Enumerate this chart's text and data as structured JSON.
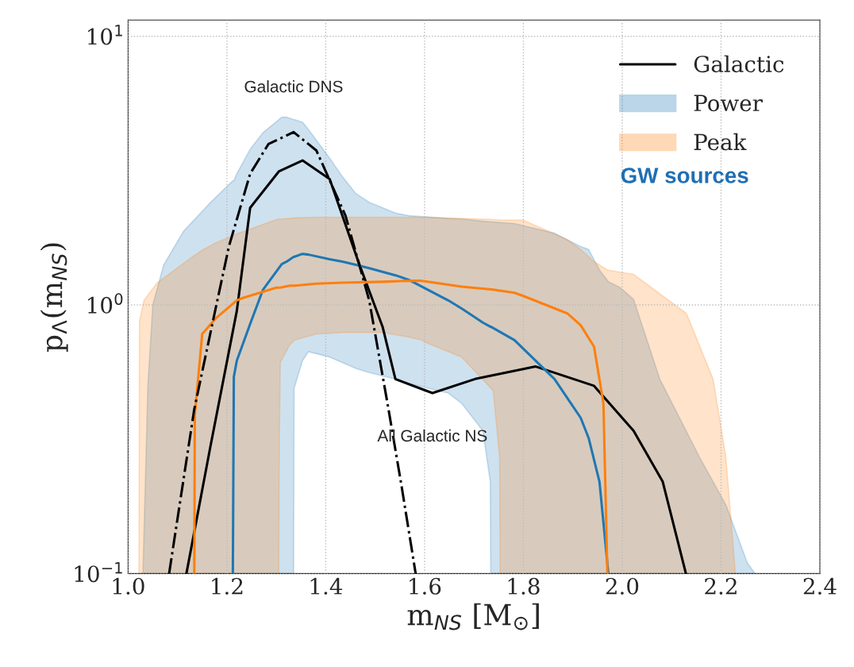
{
  "chart_data": {
    "type": "line",
    "xlabel": "m$_{NS}$ [M$_{⊙}$]",
    "ylabel": "p$_{Λ}$(m$_{NS}$)",
    "xlim": [
      1.0,
      2.4
    ],
    "xticks": [
      {
        "value": 1,
        "label": "1.0"
      },
      1.2,
      1.4,
      1.6,
      1.8,
      {
        "value": 2,
        "label": "2.0"
      },
      2.2,
      2.4
    ],
    "ylim": [
      0.1,
      11.5
    ],
    "yticks": [
      {
        "value": 0.1,
        "label": "10$^{−1}$"
      },
      {
        "value": 1,
        "label": "10$^{0}$"
      },
      {
        "value": 10,
        "label": "10$^{1}$"
      }
    ],
    "log": "y",
    "grid": true,
    "legend": "top right",
    "series": [
      {
        "name": "Galactic",
        "color": "#000000",
        "x": [
          1.118,
          1.167,
          1.22,
          1.247,
          1.305,
          1.353,
          1.408,
          1.466,
          1.515,
          1.541,
          1.616,
          1.702,
          1.825,
          1.943,
          2.023,
          2.082,
          2.129
        ],
        "values": [
          0.1,
          0.3,
          0.95,
          2.3,
          3.14,
          3.45,
          2.94,
          1.45,
          0.83,
          0.53,
          0.47,
          0.53,
          0.59,
          0.5,
          0.34,
          0.22,
          0.1
        ]
      },
      {
        "name": "Power",
        "color": "#1f77b4",
        "x": [
          1.03,
          1.04,
          1.05,
          1.072,
          1.112,
          1.167,
          1.212,
          1.214,
          1.22,
          1.247,
          1.273,
          1.311,
          1.321,
          1.335,
          1.336,
          1.353,
          1.365,
          1.408,
          1.434,
          1.461,
          1.488,
          1.541,
          1.568,
          1.648,
          1.675,
          1.718,
          1.733,
          1.734,
          1.782,
          1.863,
          1.916,
          1.932,
          1.954,
          1.972,
          1.996,
          2.023,
          2.076,
          2.157,
          2.21,
          2.253,
          2.269
        ],
        "values": [
          null,
          null,
          null,
          null,
          null,
          null,
          0.1,
          0.54,
          0.62,
          0.85,
          1.14,
          1.42,
          1.45,
          1.51,
          1.51,
          1.55,
          1.54,
          1.48,
          1.45,
          1.41,
          1.37,
          1.29,
          1.24,
          1.04,
          0.97,
          0.86,
          0.83,
          0.83,
          0.74,
          0.53,
          0.38,
          0.32,
          0.22,
          0.1,
          null,
          null,
          null,
          null,
          null,
          null,
          null
        ],
        "lower": [
          0.1,
          0.1,
          0.1,
          0.1,
          0.1,
          0.1,
          0.1,
          0.1,
          0.1,
          0.1,
          0.1,
          0.1,
          0.1,
          0.1,
          0.49,
          0.62,
          0.67,
          0.64,
          0.61,
          0.58,
          0.56,
          0.53,
          0.51,
          0.47,
          0.43,
          0.34,
          0.22,
          0.1,
          0.1,
          0.1,
          0.1,
          0.1,
          0.1,
          0.1,
          0.1,
          0.1,
          0.1,
          0.1,
          0.1,
          0.1,
          0.1
        ],
        "upper": [
          0.1,
          0.5,
          1.0,
          1.41,
          1.88,
          2.41,
          2.9,
          2.9,
          3.08,
          3.8,
          4.38,
          5.0,
          5.0,
          4.9,
          4.9,
          4.79,
          4.5,
          3.52,
          3.0,
          2.6,
          2.41,
          2.2,
          2.15,
          2.1,
          2.09,
          2.05,
          2.04,
          2.04,
          2.01,
          1.85,
          1.65,
          1.61,
          1.35,
          1.22,
          1.16,
          1.05,
          0.53,
          0.27,
          0.18,
          0.11,
          0.1
        ]
      },
      {
        "name": "Peak",
        "color": "#ff7f0e",
        "x": [
          1.022,
          1.023,
          1.032,
          1.059,
          1.134,
          1.135,
          1.15,
          1.177,
          1.22,
          1.231,
          1.3,
          1.305,
          1.306,
          1.308,
          1.327,
          1.337,
          1.381,
          1.434,
          1.515,
          1.568,
          1.594,
          1.606,
          1.675,
          1.739,
          1.752,
          1.753,
          1.782,
          1.8,
          1.889,
          1.916,
          1.943,
          1.962,
          1.97,
          2.023,
          2.13,
          2.184,
          2.21,
          2.229
        ],
        "values": [
          null,
          null,
          null,
          null,
          0.1,
          0.39,
          0.78,
          0.89,
          1.04,
          1.06,
          1.16,
          1.16,
          1.16,
          1.16,
          1.18,
          1.18,
          1.2,
          1.21,
          1.22,
          1.23,
          1.23,
          1.22,
          1.17,
          1.14,
          1.13,
          1.13,
          1.11,
          1.08,
          0.93,
          0.84,
          0.7,
          0.43,
          0.1,
          null,
          null,
          null,
          null,
          null
        ],
        "lower": [
          0.1,
          0.1,
          0.1,
          0.1,
          0.1,
          0.1,
          0.1,
          0.1,
          0.1,
          0.1,
          0.1,
          0.1,
          0.3,
          0.61,
          0.71,
          0.74,
          0.78,
          0.79,
          0.79,
          0.76,
          0.74,
          0.72,
          0.64,
          0.48,
          0.27,
          0.1,
          0.1,
          0.1,
          0.1,
          0.1,
          0.1,
          0.1,
          0.1,
          0.1,
          0.1,
          0.1,
          0.1,
          0.1
        ],
        "upper": [
          0.1,
          0.87,
          1.04,
          1.21,
          1.53,
          1.53,
          1.6,
          1.7,
          1.84,
          1.87,
          2.08,
          2.09,
          2.09,
          2.09,
          2.1,
          2.11,
          2.12,
          2.12,
          2.12,
          2.12,
          2.12,
          2.12,
          2.1,
          2.08,
          2.07,
          2.07,
          2.07,
          2.07,
          1.75,
          1.61,
          1.45,
          1.38,
          1.35,
          1.3,
          0.93,
          0.53,
          0.27,
          0.1
        ]
      },
      {
        "color": "#000000",
        "line_style": "dashdot",
        "x": [
          1.083,
          1.134,
          1.175,
          1.204,
          1.247,
          1.284,
          1.335,
          1.381,
          1.44,
          1.488,
          1.525,
          1.552,
          1.582
        ],
        "values": [
          0.1,
          0.41,
          0.93,
          1.65,
          3.08,
          3.97,
          4.4,
          3.76,
          2.15,
          1.04,
          0.43,
          0.22,
          0.1
        ]
      }
    ],
    "annotations": [
      {
        "text": "Galactic DNS",
        "x": 1.335,
        "y": 4.4
      },
      {
        "text": "All Galactic NS",
        "x": 1.616,
        "y": 0.47
      },
      "GW sources"
    ]
  }
}
